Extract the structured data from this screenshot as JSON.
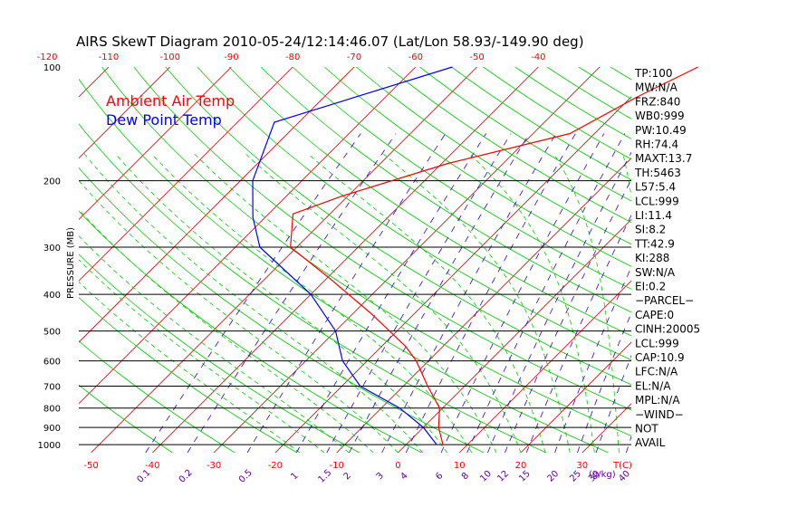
{
  "chart_data": {
    "type": "line",
    "title": "AIRS SkewT Diagram 2010-05-24/12:14:46.07 (Lat/Lon 58.93/-149.90 deg)",
    "ylabel": "PRESSURE (MB)",
    "xlabel": "T(C)",
    "mixing_ratio_unit": "(g/kg)",
    "y_scale": "log",
    "ylim": [
      1050,
      100
    ],
    "xlim_bottom": [
      -52,
      38
    ],
    "pressure_ticks": [
      100,
      200,
      300,
      400,
      500,
      600,
      700,
      800,
      900,
      1000
    ],
    "pressure_lines": [
      200,
      300,
      400,
      500,
      600,
      700,
      800,
      900,
      1000
    ],
    "bottom_temperature_ticks": [
      -50,
      -40,
      -30,
      -20,
      -10,
      0,
      10,
      20,
      30
    ],
    "top_temperature_ticks": [
      -120,
      -110,
      -100,
      -90,
      -80,
      -70,
      -60,
      -50,
      -40
    ],
    "mixing_ratio_labels": [
      "0.1",
      "0.2",
      "0.5",
      "1",
      "1.5",
      "2",
      "3",
      "4",
      "6",
      "8",
      "10",
      "12",
      "15",
      "20",
      "25",
      "30",
      "40"
    ],
    "series": [
      {
        "name": "Ambient Air Temp",
        "color": "#ff0000",
        "points": [
          {
            "p": 100,
            "t": -14
          },
          {
            "p": 120,
            "t": -19
          },
          {
            "p": 150,
            "t": -24
          },
          {
            "p": 180,
            "t": -39
          },
          {
            "p": 220,
            "t": -51
          },
          {
            "p": 245,
            "t": -56
          },
          {
            "p": 300,
            "t": -51
          },
          {
            "p": 360,
            "t": -40
          },
          {
            "p": 450,
            "t": -27
          },
          {
            "p": 550,
            "t": -16
          },
          {
            "p": 600,
            "t": -12
          },
          {
            "p": 700,
            "t": -6
          },
          {
            "p": 800,
            "t": -0.5
          },
          {
            "p": 900,
            "t": 2.5
          },
          {
            "p": 1000,
            "t": 6
          }
        ]
      },
      {
        "name": "Dew Point Temp",
        "color": "#0000ff",
        "points": [
          {
            "p": 100,
            "t": -54
          },
          {
            "p": 140,
            "t": -74
          },
          {
            "p": 200,
            "t": -68
          },
          {
            "p": 250,
            "t": -62
          },
          {
            "p": 300,
            "t": -56
          },
          {
            "p": 400,
            "t": -40
          },
          {
            "p": 500,
            "t": -30
          },
          {
            "p": 600,
            "t": -24
          },
          {
            "p": 700,
            "t": -17
          },
          {
            "p": 800,
            "t": -7
          },
          {
            "p": 900,
            "t": 0
          },
          {
            "p": 1000,
            "t": 5
          }
        ]
      }
    ],
    "indices": [
      "TP:100",
      "MW:N/A",
      "FRZ:840",
      "WB0:999",
      "PW:10.49",
      "RH:74.4",
      "MAXT:13.7",
      "TH:5463",
      "L57:5.4",
      "LCL:999",
      "LI:11.4",
      "SI:8.2",
      "TT:42.9",
      "KI:288",
      "SW:N/A",
      "EI:0.2",
      "−PARCEL−",
      "CAPE:0",
      "CINH:20005",
      "LCL:999",
      "CAP:10.9",
      "LFC:N/A",
      "EL:N/A",
      "MPL:N/A",
      "−WIND−",
      "NOT",
      "AVAIL"
    ],
    "colors": {
      "isobar": "#000000",
      "isotherm": "#cc0000",
      "dry_adiabat": "#00cc00",
      "moist_adiabat": "#00cc00",
      "mixing_ratio": "#3300cc",
      "tick_red": "#ff0000",
      "tick_purple": "#660099",
      "legend_air": "#ff0000",
      "legend_dew": "#0000ff"
    }
  }
}
